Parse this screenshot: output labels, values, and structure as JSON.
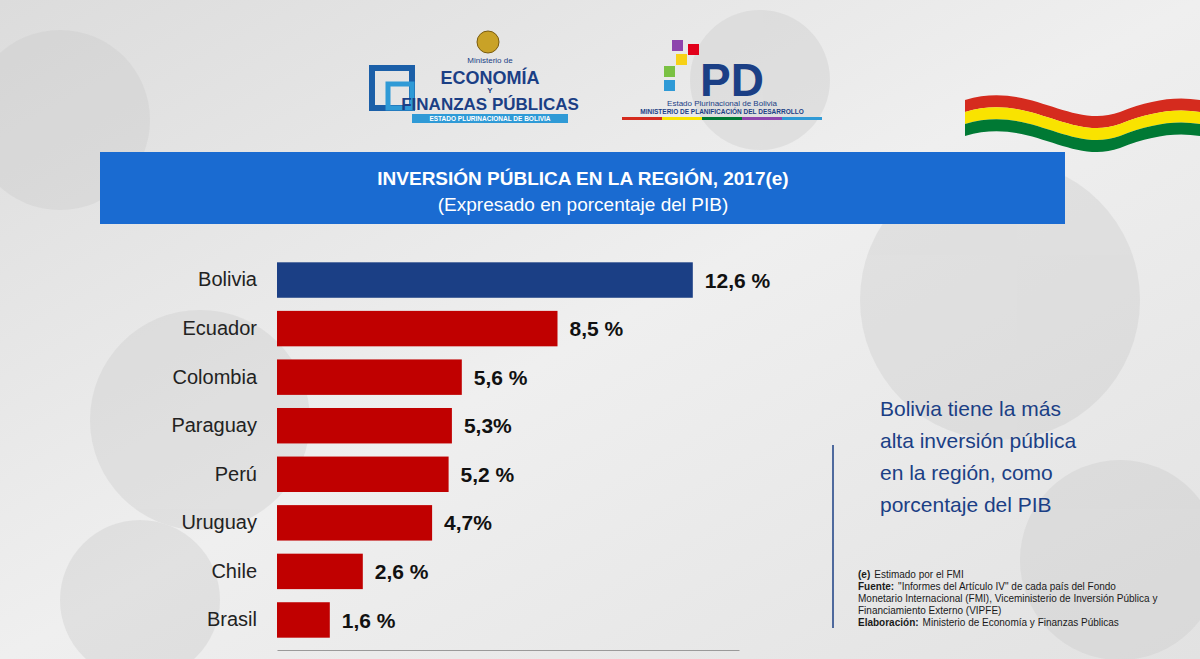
{
  "chart_data": {
    "type": "bar",
    "orientation": "horizontal",
    "title": "INVERSIÓN PÚBLICA EN LA REGIÓN, 2017(e)",
    "subtitle": "(Expresado en porcentaje del PIB)",
    "categories": [
      "Bolivia",
      "Ecuador",
      "Colombia",
      "Paraguay",
      "Perú",
      "Uruguay",
      "Chile",
      "Brasil"
    ],
    "values": [
      12.6,
      8.5,
      5.6,
      5.3,
      5.2,
      4.7,
      2.6,
      1.6
    ],
    "value_labels": [
      "12,6 %",
      "8,5 %",
      "5,6 %",
      "5,3%",
      "5,2 %",
      "4,7%",
      "2,6 %",
      "1,6 %"
    ],
    "colors": [
      "#1b3f85",
      "#c00000",
      "#c00000",
      "#c00000",
      "#c00000",
      "#c00000",
      "#c00000",
      "#c00000"
    ],
    "xlim": [
      0,
      14
    ],
    "grid": false,
    "data_labels": true,
    "tick_labels": "y",
    "annotation": [
      "Bolivia tiene la más",
      "alta inversión pública",
      "en la región, como",
      "porcentaje del PIB"
    ],
    "notes": [
      {
        "label": "(e)",
        "text": "Estimado por el FMI"
      },
      {
        "label": "Fuente:",
        "text": "\"Informes del Artículo IV\" de cada país del Fondo Monetario Internacional (FMI), Viceministerio de Inversión Pública y Financiamiento Externo (VIPFE)"
      },
      {
        "label": "Elaboración:",
        "text": "Ministerio de Economía y Finanzas Públicas"
      }
    ]
  },
  "logos": {
    "economia": [
      "Ministerio de",
      "ECONOMÍA",
      "Y",
      "FINANZAS PÚBLICAS",
      "ESTADO PLURINACIONAL DE BOLIVIA"
    ],
    "planificacion": [
      "PD",
      "Estado Plurinacional de Bolivia",
      "MINISTERIO DE PLANIFICACIÓN DEL DESARROLLO"
    ]
  }
}
